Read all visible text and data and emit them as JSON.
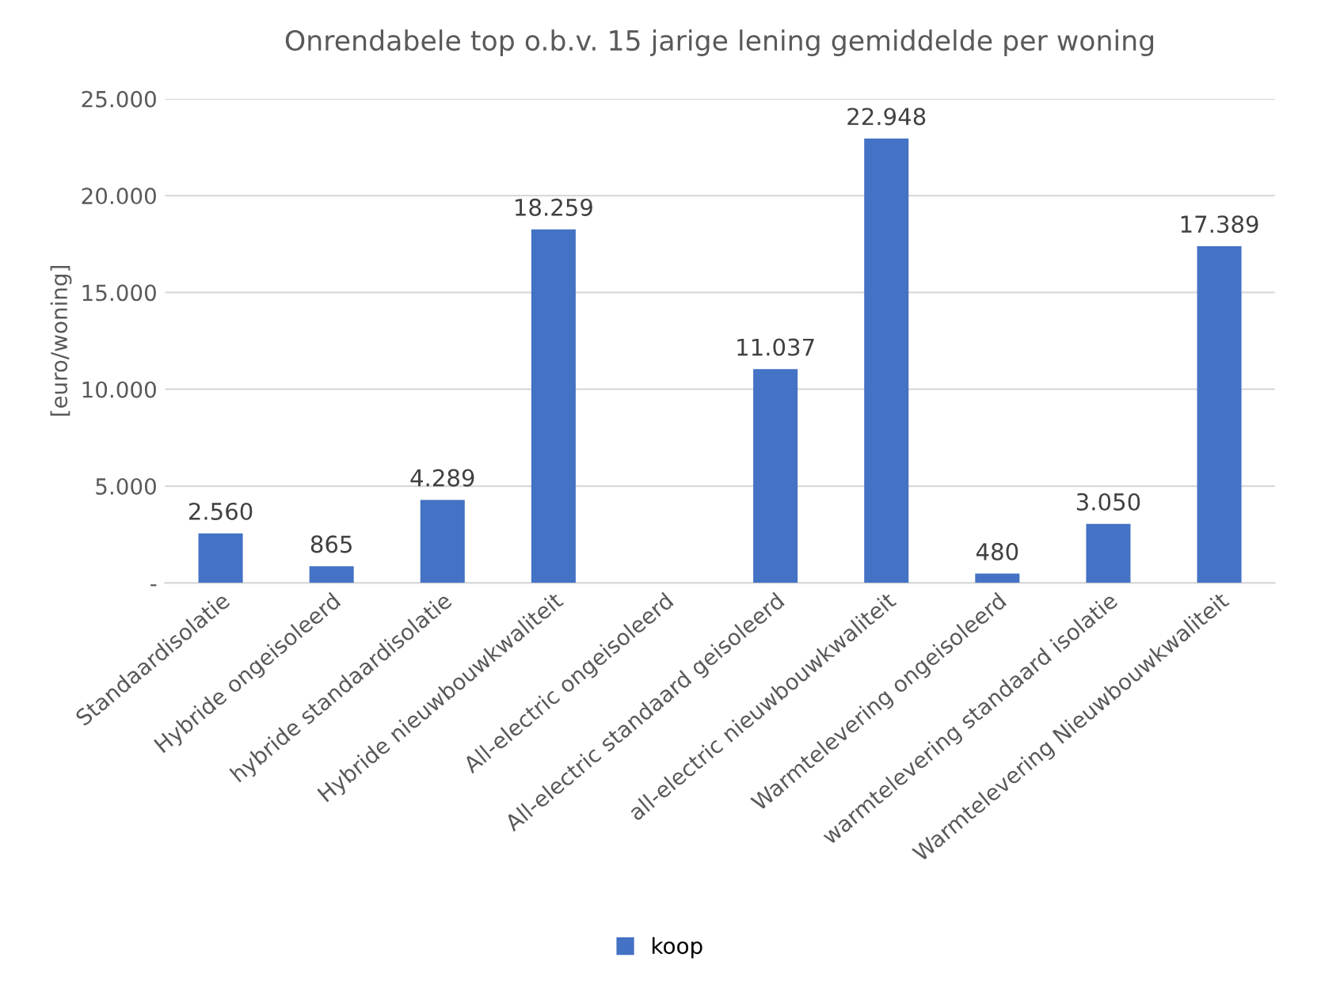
{
  "chart_data": {
    "type": "bar",
    "title": "Onrendabele top o.b.v. 15 jarige lening gemiddelde per woning",
    "ylabel": "[euro/woning]",
    "categories": [
      "Standaardisolatie",
      "Hybride ongeisoleerd",
      "hybride standaardisolatie",
      "Hybride nieuwbouwkwaliteit",
      "All-electric ongeisoleerd",
      "All-electric standaard geisoleerd",
      "all-electric nieuwbouwkwaliteit",
      "Warmtelevering ongeisoleerd",
      "warmtelevering standaard isolatie",
      "Warmtelevering Nieuwbouwkwaliteit"
    ],
    "series": [
      {
        "name": "koop",
        "color": "#4472c4",
        "values": [
          2560,
          865,
          4289,
          18259,
          null,
          11037,
          22948,
          480,
          3050,
          17389
        ],
        "value_labels": [
          "2.560",
          "865",
          "4.289",
          "18.259",
          null,
          "11.037",
          "22.948",
          "480",
          "3.050",
          "17.389"
        ]
      }
    ],
    "ylim": [
      0,
      25000
    ],
    "yticks": [
      {
        "value": 0,
        "label": "-"
      },
      {
        "value": 5000,
        "label": "5.000"
      },
      {
        "value": 10000,
        "label": "10.000"
      },
      {
        "value": 15000,
        "label": "15.000"
      },
      {
        "value": 20000,
        "label": "20.000"
      },
      {
        "value": 25000,
        "label": "25.000"
      }
    ],
    "grid": "y",
    "legend": "bottom"
  }
}
